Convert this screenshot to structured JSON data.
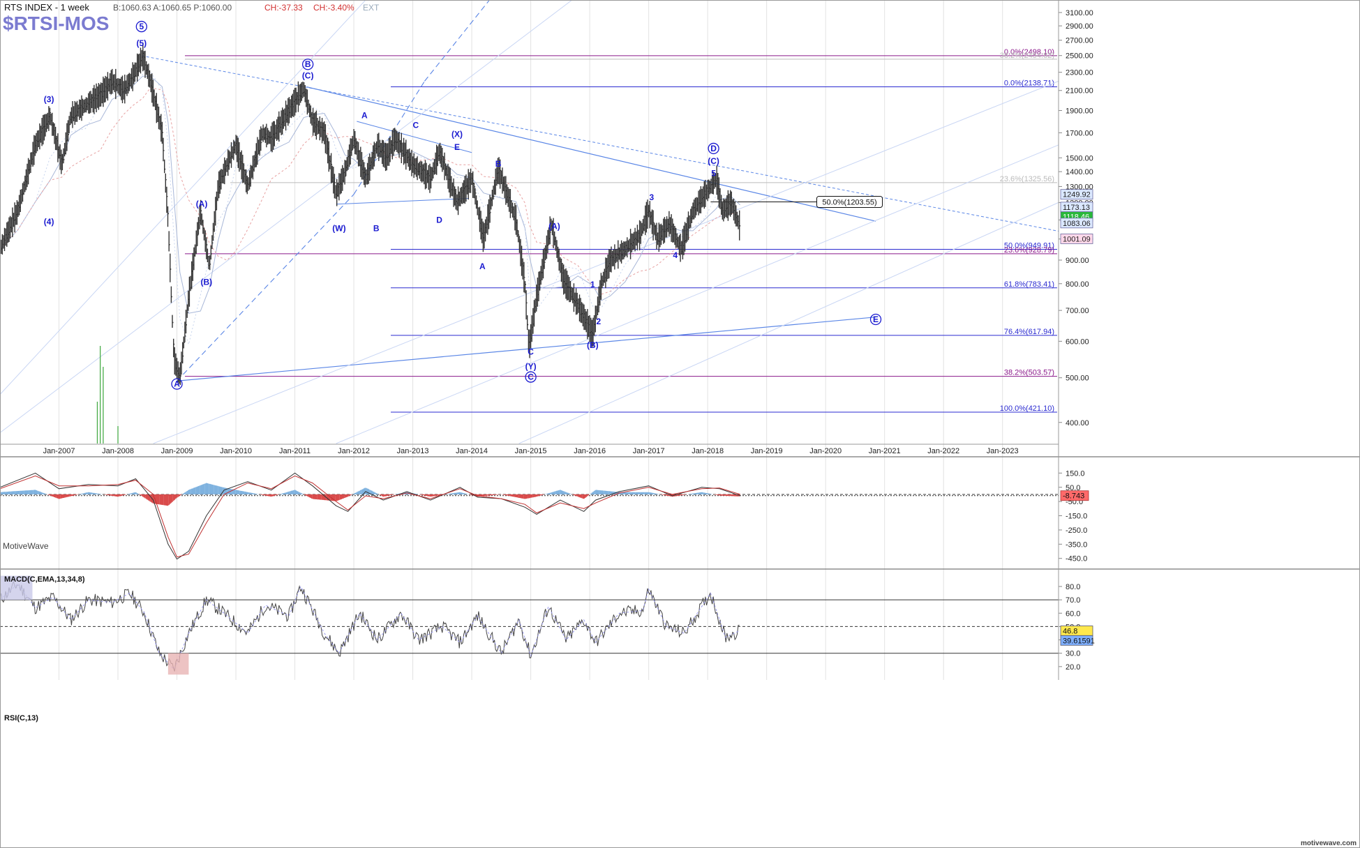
{
  "header": {
    "symbol_title": "RTS INDEX - 1 week",
    "quote": "B:1060.63  A:1060.65  P:1060.00",
    "change_pts": "CH:-37.33",
    "change_pct": "CH:-3.40%",
    "ext": "EXT",
    "watermark_symbol": "$RTSI-MOS"
  },
  "footer": {
    "brand_left": "MotiveWave",
    "brand_right": "motivewave.com"
  },
  "colors": {
    "price": "#333333",
    "wave_label": "#1a1ad0",
    "fib_blue": "#2a2ad0",
    "fib_purple": "#8a188a",
    "trend_blue": "#5a86e6",
    "macd_pos": "#7fb2df",
    "macd_neg": "#d94b4b",
    "grid": "#e2e2e2"
  },
  "chart_data": [
    {
      "type": "line",
      "title": "RTS INDEX - 1 week",
      "scale": "log",
      "ylim": [
        360,
        3300
      ],
      "x_tick_labels": [
        "Jan-2007",
        "Jan-2008",
        "Jan-2009",
        "Jan-2010",
        "Jan-2011",
        "Jan-2012",
        "Jan-2013",
        "Jan-2014",
        "Jan-2015",
        "Jan-2016",
        "Jan-2017",
        "Jan-2018",
        "Jan-2019",
        "Jan-2020",
        "Jan-2021",
        "Jan-2022",
        "Jan-2023"
      ],
      "y_tick_labels": [
        "3100.00",
        "2900.00",
        "2700.00",
        "2500.00",
        "2300.00",
        "2100.00",
        "1900.00",
        "1700.00",
        "1500.00",
        "1400.00",
        "1300.00",
        "1200.00",
        "1100.00",
        "1000.00",
        "900.00",
        "800.00",
        "700.00",
        "600.00",
        "500.00",
        "400.00"
      ],
      "y_tick_values": [
        3100,
        2900,
        2700,
        2500,
        2300,
        2100,
        1900,
        1700,
        1500,
        1400,
        1300,
        1200,
        1100,
        1000,
        900,
        800,
        700,
        600,
        500,
        400
      ],
      "series": [
        {
          "x": [
            2006.0,
            2006.3,
            2006.6,
            2006.85,
            2007.05,
            2007.2,
            2007.45,
            2007.7,
            2007.9,
            2008.1,
            2008.25,
            2008.42,
            2008.55,
            2008.75,
            2008.85,
            2008.95,
            2009.05,
            2009.2,
            2009.4,
            2009.55,
            2009.7,
            2009.85,
            2010.0,
            2010.2,
            2010.45,
            2010.6,
            2010.9,
            2011.15,
            2011.3,
            2011.5,
            2011.7,
            2011.85,
            2012.0,
            2012.2,
            2012.4,
            2012.55,
            2012.7,
            2013.0,
            2013.3,
            2013.45,
            2013.75,
            2014.0,
            2014.2,
            2014.45,
            2014.75,
            2014.9,
            2014.97,
            2015.1,
            2015.35,
            2015.55,
            2015.8,
            2016.05,
            2016.2,
            2016.35,
            2016.6,
            2016.85,
            2017.0,
            2017.15,
            2017.35,
            2017.55,
            2017.75,
            2017.95,
            2018.15,
            2018.25,
            2018.4,
            2018.55
          ],
          "y": [
            950,
            1150,
            1600,
            1850,
            1450,
            1850,
            1950,
            2050,
            2200,
            2100,
            2250,
            2490,
            2200,
            1700,
            1100,
            550,
            500,
            750,
            1150,
            870,
            1300,
            1450,
            1600,
            1300,
            1700,
            1650,
            1900,
            2120,
            1800,
            1700,
            1250,
            1400,
            1650,
            1350,
            1600,
            1500,
            1650,
            1450,
            1350,
            1550,
            1200,
            1350,
            1000,
            1420,
            1100,
            800,
            580,
            750,
            1080,
            820,
            720,
            620,
            800,
            900,
            950,
            1020,
            1150,
            1000,
            1080,
            950,
            1150,
            1250,
            1350,
            1150,
            1200,
            1060
          ]
        }
      ],
      "annotations": {
        "fib_levels": [
          {
            "label": "0.0%(2498.10)",
            "value": 2498.1,
            "group": "purple"
          },
          {
            "label": "38.2%(2454.82)",
            "value": 2454.82,
            "group": "gray"
          },
          {
            "label": "0.0%(2138.71)",
            "value": 2138.71,
            "group": "blue"
          },
          {
            "label": "23.6%(1325.56)",
            "value": 1325.56,
            "group": "gray"
          },
          {
            "label": "50.0%(949.91)",
            "value": 949.91,
            "group": "blue"
          },
          {
            "label": "23.6%(928.79)",
            "value": 928.79,
            "group": "purple"
          },
          {
            "label": "61.8%(783.41)",
            "value": 783.41,
            "group": "blue"
          },
          {
            "label": "76.4%(617.94)",
            "value": 617.94,
            "group": "blue"
          },
          {
            "label": "38.2%(503.57)",
            "value": 503.57,
            "group": "purple"
          },
          {
            "label": "100.0%(421.10)",
            "value": 421.1,
            "group": "blue"
          }
        ],
        "retracement_label": "50.0%(1203.55)",
        "retracement_value": 1203.55,
        "price_badges": [
          {
            "label": "1249.92",
            "value": 1249.92,
            "fill": "#dbe8ff"
          },
          {
            "label": "1173.13",
            "value": 1173.13,
            "fill": "#dbe8ff"
          },
          {
            "label": "1118.46",
            "value": 1118.46,
            "fill": "#29b83a"
          },
          {
            "label": "1083.06",
            "value": 1083.06,
            "fill": "#dbe8ff"
          },
          {
            "label": "1001.09",
            "value": 1001.09,
            "fill": "#ffd8ea"
          }
        ],
        "wave_labels": [
          {
            "text": "5",
            "circled": true,
            "x": 2008.4,
            "y": 2850
          },
          {
            "text": "(5)",
            "x": 2008.4,
            "y": 2620
          },
          {
            "text": "(3)",
            "x": 2006.83,
            "y": 1980
          },
          {
            "text": "(4)",
            "x": 2006.83,
            "y": 1075
          },
          {
            "text": "B",
            "circled": true,
            "x": 2011.22,
            "y": 2360
          },
          {
            "text": "(C)",
            "x": 2011.22,
            "y": 2230
          },
          {
            "text": "A",
            "x": 2012.18,
            "y": 1830
          },
          {
            "text": "C",
            "x": 2013.05,
            "y": 1740
          },
          {
            "text": "(X)",
            "x": 2013.75,
            "y": 1665
          },
          {
            "text": "E",
            "x": 2013.75,
            "y": 1560
          },
          {
            "text": "B",
            "x": 2014.45,
            "y": 1435
          },
          {
            "text": "(W)",
            "x": 2011.75,
            "y": 1040
          },
          {
            "text": "B",
            "x": 2012.38,
            "y": 1040
          },
          {
            "text": "D",
            "x": 2013.45,
            "y": 1085
          },
          {
            "text": "A",
            "x": 2014.18,
            "y": 860
          },
          {
            "text": "(A)",
            "x": 2015.4,
            "y": 1050
          },
          {
            "text": "(A)",
            "x": 2009.42,
            "y": 1175
          },
          {
            "text": "(B)",
            "x": 2009.5,
            "y": 795
          },
          {
            "text": "A",
            "circled": true,
            "x": 2009.0,
            "y": 478
          },
          {
            "text": "3",
            "x": 2017.05,
            "y": 1215
          },
          {
            "text": "D",
            "circled": true,
            "x": 2018.1,
            "y": 1550
          },
          {
            "text": "(C)",
            "x": 2018.1,
            "y": 1455
          },
          {
            "text": "5",
            "x": 2018.1,
            "y": 1370
          },
          {
            "text": "4",
            "x": 2017.45,
            "y": 910
          },
          {
            "text": "1",
            "x": 2016.05,
            "y": 785
          },
          {
            "text": "2",
            "x": 2016.15,
            "y": 653
          },
          {
            "text": "(B)",
            "x": 2016.05,
            "y": 580
          },
          {
            "text": "C",
            "x": 2015.0,
            "y": 561
          },
          {
            "text": "(Y)",
            "x": 2015.0,
            "y": 522
          },
          {
            "text": "C",
            "circled": true,
            "x": 2015.0,
            "y": 495
          },
          {
            "text": "E",
            "circled": true,
            "x": 2020.85,
            "y": 660
          }
        ]
      }
    },
    {
      "type": "line",
      "title": "MACD(C,EMA,13,34,8)",
      "ylim": [
        -520,
        240
      ],
      "y_tick_labels": [
        "150.0",
        "50.0",
        "-50.0",
        "-150.0",
        "-250.0",
        "-350.0",
        "-450.0"
      ],
      "y_tick_values": [
        150,
        50,
        -50,
        -150,
        -250,
        -350,
        -450
      ],
      "current_value_label": "-8.743",
      "current_value": -8.743,
      "series": [
        {
          "name": "MACD",
          "x": [
            2006.0,
            2006.6,
            2007.0,
            2007.5,
            2008.0,
            2008.3,
            2008.6,
            2008.85,
            2009.0,
            2009.2,
            2009.5,
            2009.8,
            2010.2,
            2010.6,
            2011.0,
            2011.3,
            2011.7,
            2011.9,
            2012.2,
            2012.5,
            2012.9,
            2013.3,
            2013.8,
            2014.1,
            2014.5,
            2014.9,
            2015.1,
            2015.5,
            2015.9,
            2016.1,
            2016.5,
            2017.0,
            2017.4,
            2017.9,
            2018.2,
            2018.55
          ],
          "y": [
            50,
            150,
            40,
            70,
            60,
            110,
            -40,
            -350,
            -455,
            -400,
            -150,
            30,
            90,
            30,
            150,
            60,
            -80,
            -120,
            20,
            -40,
            20,
            -40,
            50,
            -20,
            -30,
            -90,
            -140,
            -40,
            -120,
            -40,
            20,
            60,
            -10,
            50,
            40,
            -9
          ]
        },
        {
          "name": "Signal",
          "x": [
            2006.0,
            2006.6,
            2007.0,
            2007.5,
            2008.0,
            2008.3,
            2008.6,
            2008.85,
            2009.0,
            2009.2,
            2009.5,
            2009.8,
            2010.2,
            2010.6,
            2011.0,
            2011.3,
            2011.7,
            2011.9,
            2012.2,
            2012.5,
            2012.9,
            2013.3,
            2013.8,
            2014.1,
            2014.5,
            2014.9,
            2015.1,
            2015.5,
            2015.9,
            2016.1,
            2016.5,
            2017.0,
            2017.4,
            2017.9,
            2018.2,
            2018.55
          ],
          "y": [
            40,
            130,
            60,
            60,
            70,
            100,
            0,
            -300,
            -440,
            -420,
            -200,
            0,
            80,
            40,
            130,
            80,
            -50,
            -110,
            -10,
            -30,
            10,
            -30,
            40,
            -10,
            -30,
            -70,
            -130,
            -60,
            -100,
            -60,
            10,
            50,
            0,
            40,
            45,
            0
          ]
        }
      ]
    },
    {
      "type": "line",
      "title": "RSI(C,13)",
      "ylim": [
        10,
        92
      ],
      "y_tick_labels": [
        "80.0",
        "70.0",
        "60.0",
        "50.0",
        "40.0",
        "30.0",
        "20.0"
      ],
      "y_tick_values": [
        80,
        70,
        60,
        50,
        40,
        30,
        20
      ],
      "current_value_labels": [
        "46.8",
        "39.61591"
      ],
      "current_values": [
        46.8,
        39.61591
      ],
      "series": [
        {
          "name": "RSI",
          "x": [
            2006.0,
            2006.3,
            2006.6,
            2006.9,
            2007.2,
            2007.5,
            2007.9,
            2008.2,
            2008.45,
            2008.7,
            2008.95,
            2009.2,
            2009.5,
            2009.8,
            2010.2,
            2010.5,
            2010.9,
            2011.1,
            2011.5,
            2011.75,
            2012.1,
            2012.4,
            2012.8,
            2013.1,
            2013.5,
            2013.8,
            2014.1,
            2014.5,
            2014.8,
            2015.0,
            2015.3,
            2015.6,
            2015.9,
            2016.1,
            2016.5,
            2016.9,
            2017.0,
            2017.3,
            2017.6,
            2017.9,
            2018.05,
            2018.3,
            2018.55
          ],
          "y": [
            70,
            82,
            64,
            72,
            55,
            70,
            68,
            75,
            60,
            30,
            18,
            45,
            70,
            60,
            45,
            66,
            58,
            80,
            45,
            30,
            60,
            40,
            60,
            40,
            50,
            38,
            58,
            30,
            55,
            28,
            65,
            40,
            55,
            38,
            60,
            62,
            78,
            50,
            45,
            65,
            75,
            42,
            47
          ]
        }
      ]
    }
  ]
}
